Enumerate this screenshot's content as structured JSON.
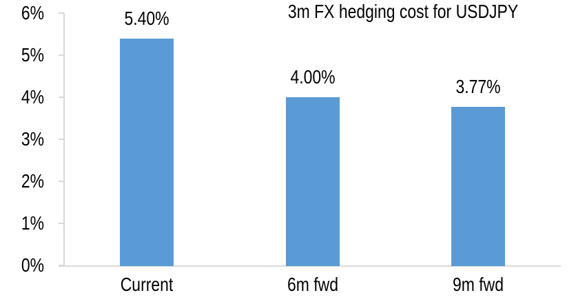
{
  "chart_data": {
    "type": "bar",
    "title": "3m FX hedging cost for USDJPY",
    "categories": [
      "Current",
      "6m fwd",
      "9m fwd"
    ],
    "values": [
      5.4,
      4.0,
      3.77
    ],
    "data_labels": [
      "5.40%",
      "4.00%",
      "3.77%"
    ],
    "y_tick_labels": [
      "0%",
      "1%",
      "2%",
      "3%",
      "4%",
      "5%",
      "6%"
    ],
    "ylim": [
      0,
      6
    ],
    "y_tick_step": 1,
    "xlabel": "",
    "ylabel": "",
    "grid": false,
    "legend_position": "none",
    "bar_color": "#5B9BD5",
    "axis_color": "#D9D9D9",
    "text_color": "#000000",
    "background_color": "#FFFFFF"
  }
}
